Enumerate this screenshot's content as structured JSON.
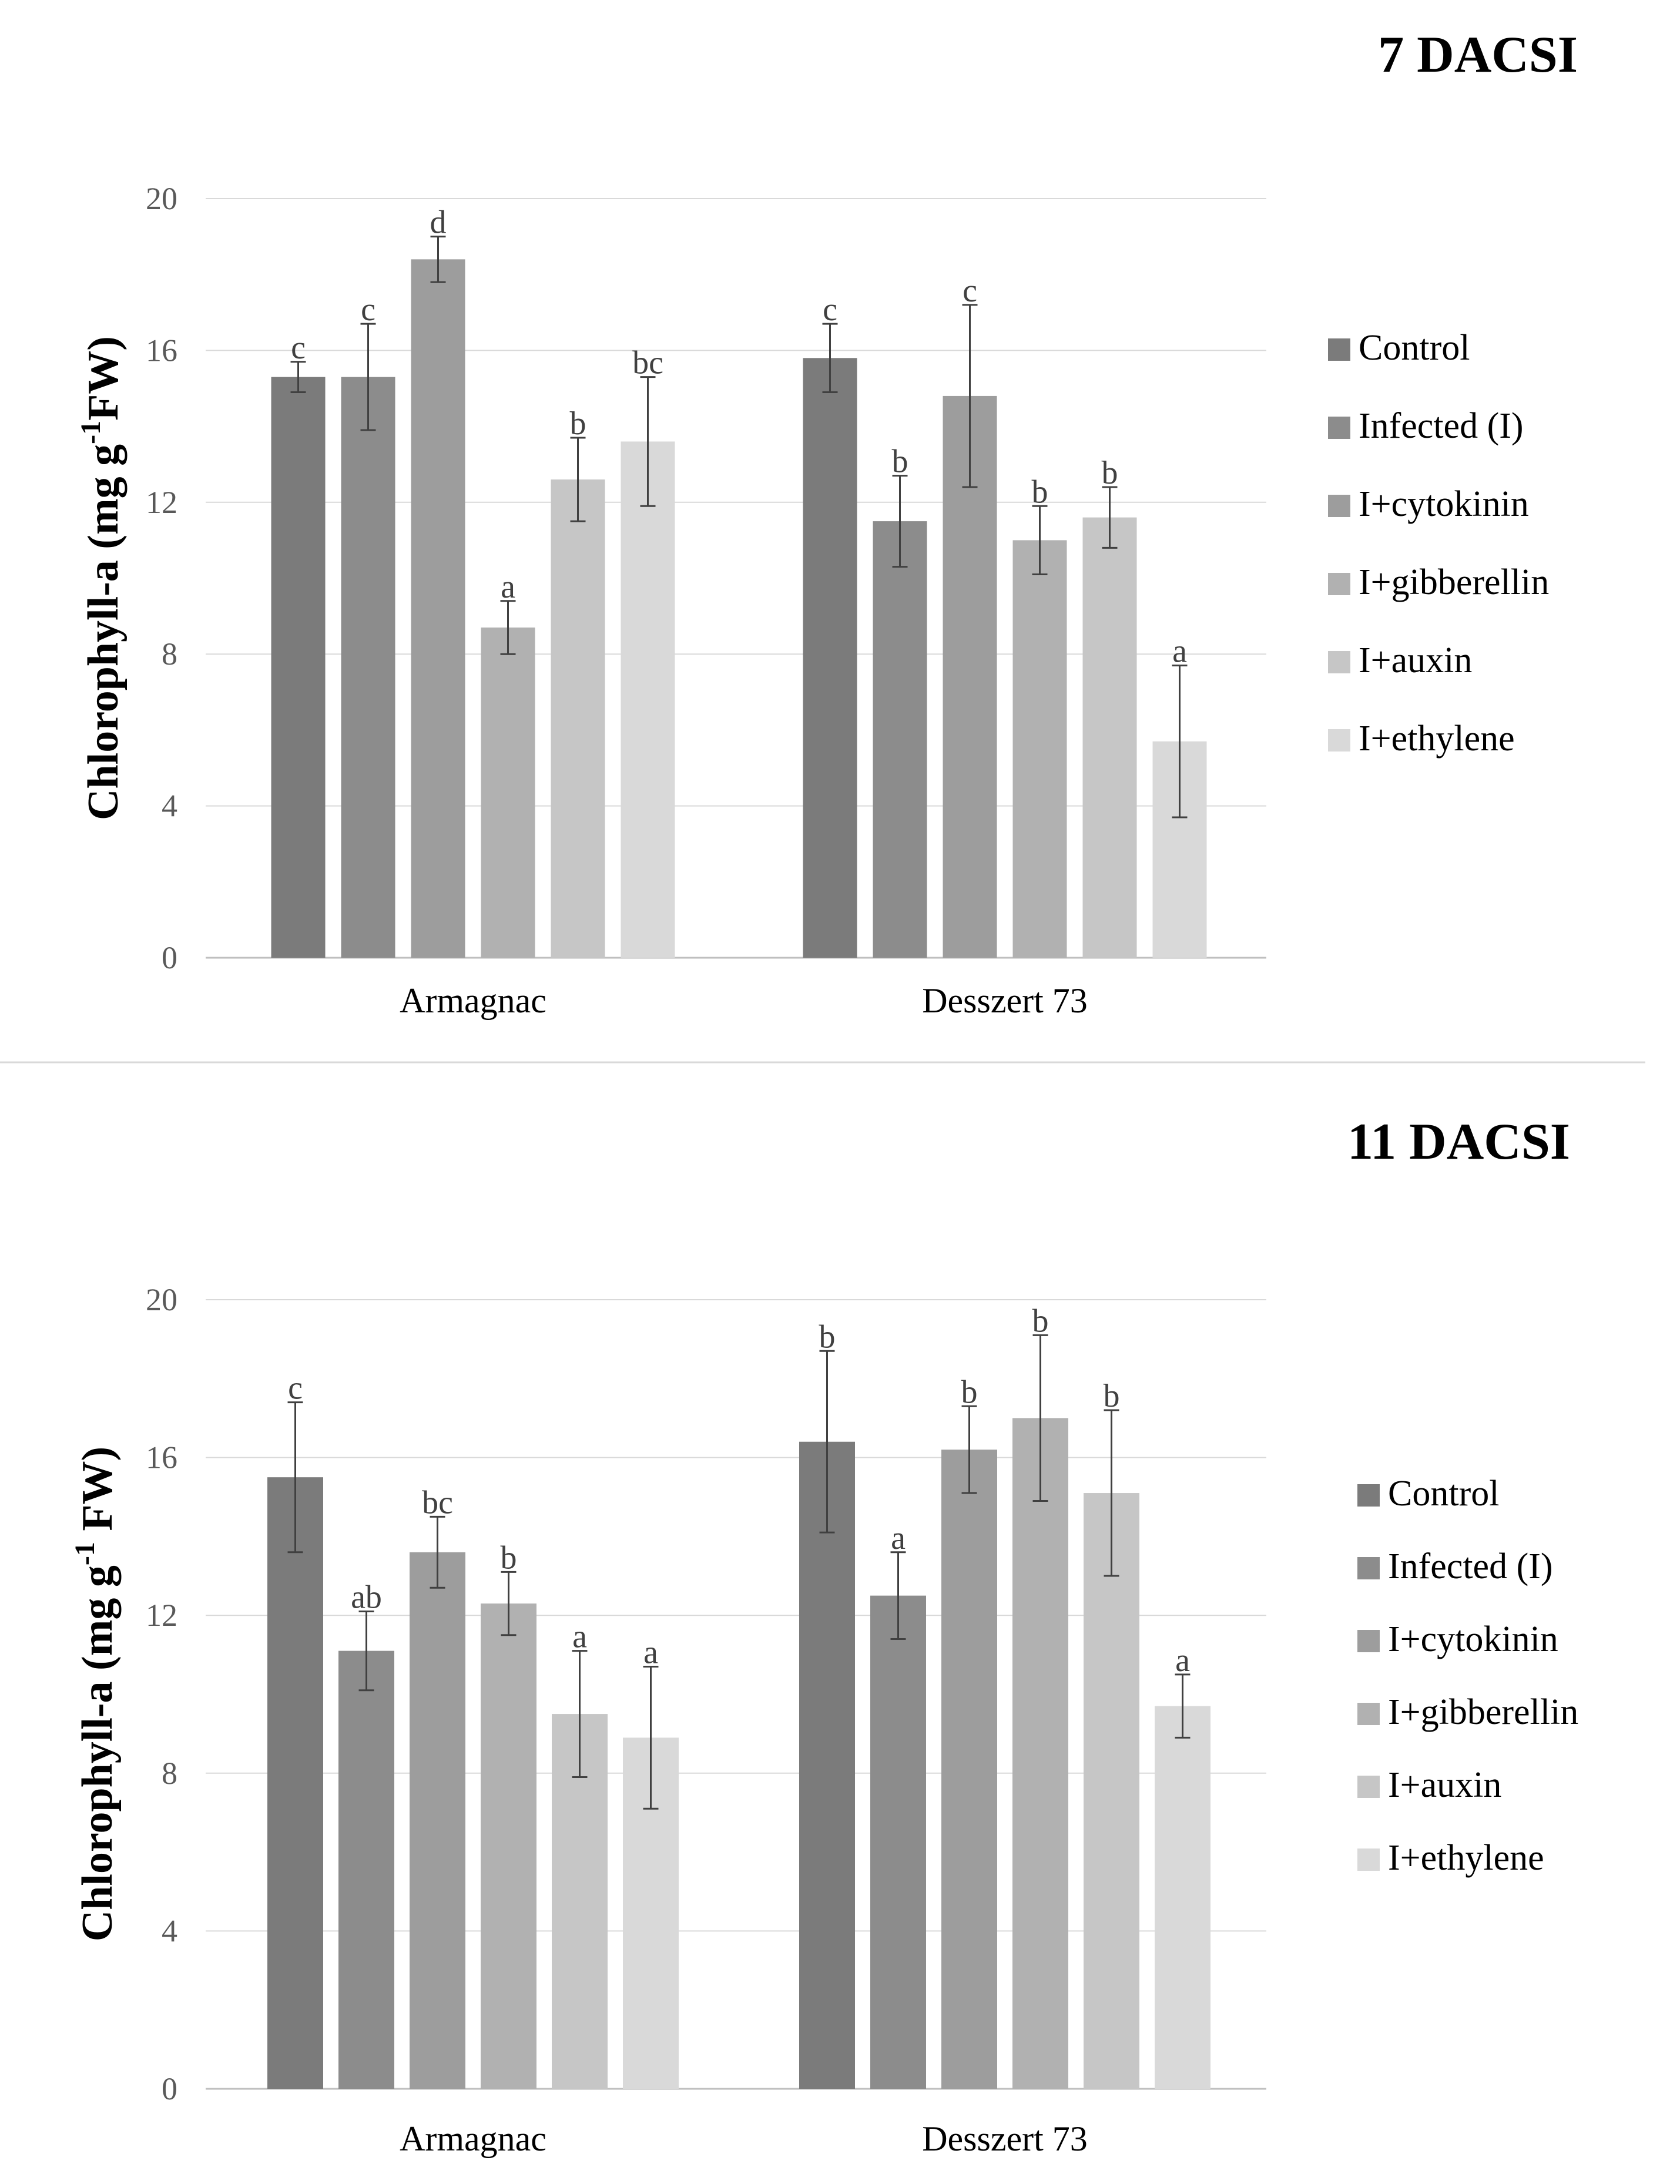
{
  "chart_data": [
    {
      "type": "bar",
      "title": "7 DACSI",
      "xlabel": "",
      "ylabel": "Chlorophyll-a (mg g⁻¹FW)",
      "ylabel_parts": {
        "pre": "Chlorophyll-a (mg g",
        "sup": "-1",
        "post": "FW)"
      },
      "ylim": [
        0,
        20
      ],
      "yticks": [
        "0",
        "4",
        "8",
        "12",
        "16",
        "20"
      ],
      "ytick_values": [
        0,
        4,
        8,
        12,
        16,
        20
      ],
      "grid": true,
      "legend_position": "right",
      "categories": [
        "Armagnac",
        "Desszert 73"
      ],
      "series": [
        {
          "name": "Control",
          "color": "#7b7b7b",
          "values": [
            15.3,
            15.8
          ],
          "errors": [
            0.4,
            0.9
          ],
          "letters": [
            "c",
            "c"
          ]
        },
        {
          "name": "Infected (I)",
          "color": "#8c8c8c",
          "values": [
            15.3,
            11.5
          ],
          "errors": [
            1.4,
            1.2
          ],
          "letters": [
            "c",
            "b"
          ]
        },
        {
          "name": "I+cytokinin",
          "color": "#9d9d9d",
          "values": [
            18.4,
            14.8
          ],
          "errors": [
            0.6,
            2.4
          ],
          "letters": [
            "d",
            "c"
          ]
        },
        {
          "name": "I+gibberellin",
          "color": "#b1b1b1",
          "values": [
            8.7,
            11.0
          ],
          "errors": [
            0.7,
            0.9
          ],
          "letters": [
            "a",
            "b"
          ]
        },
        {
          "name": "I+auxin",
          "color": "#c6c6c6",
          "values": [
            12.6,
            11.6
          ],
          "errors": [
            1.1,
            0.8
          ],
          "letters": [
            "b",
            "b"
          ]
        },
        {
          "name": "I+ethylene",
          "color": "#d9d9d9",
          "values": [
            13.6,
            5.7
          ],
          "errors": [
            1.7,
            2.0
          ],
          "letters": [
            "bc",
            "a"
          ]
        }
      ]
    },
    {
      "type": "bar",
      "title": "11 DACSI",
      "xlabel": "",
      "ylabel": "Chlorophyll-a (mg g⁻¹ FW)",
      "ylabel_parts": {
        "pre": "Chlorophyll-a (mg g",
        "sup": "-1",
        "post": " FW)"
      },
      "ylim": [
        0,
        20
      ],
      "yticks": [
        "0",
        "4",
        "8",
        "12",
        "16",
        "20"
      ],
      "ytick_values": [
        0,
        4,
        8,
        12,
        16,
        20
      ],
      "grid": true,
      "legend_position": "right",
      "categories": [
        "Armagnac",
        "Desszert 73"
      ],
      "series": [
        {
          "name": "Control",
          "color": "#7b7b7b",
          "values": [
            15.5,
            16.4
          ],
          "errors": [
            1.9,
            2.3
          ],
          "letters": [
            "c",
            "b"
          ]
        },
        {
          "name": "Infected (I)",
          "color": "#8c8c8c",
          "values": [
            11.1,
            12.5
          ],
          "errors": [
            1.0,
            1.1
          ],
          "letters": [
            "ab",
            "a"
          ]
        },
        {
          "name": "I+cytokinin",
          "color": "#9d9d9d",
          "values": [
            13.6,
            16.2
          ],
          "errors": [
            0.9,
            1.1
          ],
          "letters": [
            "bc",
            "b"
          ]
        },
        {
          "name": "I+gibberellin",
          "color": "#b1b1b1",
          "values": [
            12.3,
            17.0
          ],
          "errors": [
            0.8,
            2.1
          ],
          "letters": [
            "b",
            "b"
          ]
        },
        {
          "name": "I+auxin",
          "color": "#c6c6c6",
          "values": [
            9.5,
            15.1
          ],
          "errors": [
            1.6,
            2.1
          ],
          "letters": [
            "a",
            "b"
          ]
        },
        {
          "name": "I+ethylene",
          "color": "#d9d9d9",
          "values": [
            8.9,
            9.7
          ],
          "errors": [
            1.8,
            0.8
          ],
          "letters": [
            "a",
            "a"
          ]
        }
      ]
    }
  ]
}
